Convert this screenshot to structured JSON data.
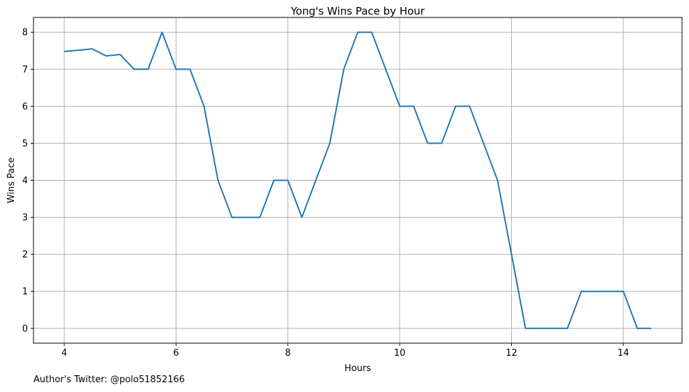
{
  "chart_data": {
    "type": "line",
    "title": "Yong's Wins Pace by Hour",
    "xlabel": "Hours",
    "ylabel": "Wins Pace",
    "xlim": [
      3.45,
      15.05
    ],
    "ylim": [
      -0.4,
      8.4
    ],
    "xticks": [
      4,
      6,
      8,
      10,
      12,
      14
    ],
    "yticks": [
      0,
      1,
      2,
      3,
      4,
      5,
      6,
      7,
      8
    ],
    "grid": true,
    "legend": "none",
    "series": [
      {
        "color": "#1f77b4",
        "x": [
          4.0,
          4.5,
          4.75,
          5.0,
          5.25,
          5.5,
          5.75,
          6.0,
          6.25,
          6.5,
          6.75,
          7.0,
          7.25,
          7.5,
          7.75,
          8.0,
          8.25,
          8.5,
          8.75,
          9.0,
          9.25,
          9.5,
          9.75,
          10.0,
          10.25,
          10.5,
          10.75,
          11.0,
          11.25,
          11.5,
          11.75,
          12.0,
          12.25,
          12.5,
          12.75,
          13.0,
          13.25,
          13.5,
          13.75,
          14.0,
          14.25,
          14.5
        ],
        "y": [
          7.48,
          7.55,
          7.36,
          7.4,
          7.0,
          7.0,
          8.0,
          7.0,
          7.0,
          6.0,
          4.0,
          3.0,
          3.0,
          3.0,
          4.0,
          4.0,
          3.0,
          4.0,
          5.0,
          7.0,
          8.0,
          8.0,
          7.0,
          6.0,
          6.0,
          5.0,
          5.0,
          6.0,
          6.0,
          5.0,
          4.0,
          2.0,
          0.0,
          0.0,
          0.0,
          0.0,
          1.0,
          1.0,
          1.0,
          1.0,
          0.0,
          0.0
        ]
      }
    ]
  },
  "footer": {
    "text": "Author's Twitter: @polo51852166"
  }
}
